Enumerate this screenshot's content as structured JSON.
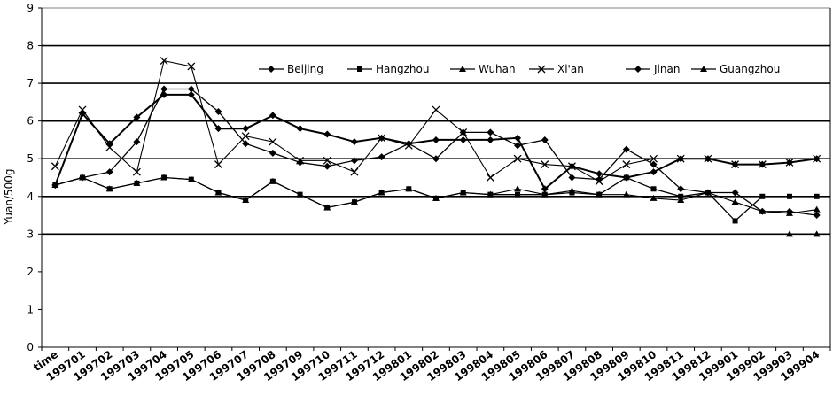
{
  "chart_data": {
    "type": "line",
    "title": "",
    "xlabel": "",
    "ylabel": "Yuan/500g",
    "ylim": [
      0,
      9
    ],
    "yticks": [
      0,
      1,
      2,
      3,
      4,
      5,
      6,
      7,
      8,
      9
    ],
    "grid": "horizontal at 3, 4, 5, 6, 7, 8",
    "legend_position": "top-right",
    "categories": [
      "time",
      "199701",
      "199702",
      "199703",
      "199704",
      "199705",
      "199706",
      "199707",
      "199708",
      "199709",
      "199710",
      "199711",
      "199712",
      "199801",
      "199802",
      "199803",
      "199804",
      "199805",
      "199806",
      "199807",
      "199808",
      "199809",
      "199810",
      "199811",
      "199812",
      "199901",
      "199902",
      "199903",
      "199904"
    ],
    "series": [
      {
        "name": "Beijing",
        "marker": "diamond",
        "color": "#000000",
        "values": [
          4.3,
          6.2,
          5.4,
          6.1,
          6.7,
          6.7,
          5.8,
          5.8,
          6.15,
          5.8,
          5.65,
          5.45,
          5.55,
          5.4,
          5.5,
          5.5,
          5.5,
          5.55,
          4.2,
          4.8,
          4.6,
          4.5,
          4.65,
          5.0,
          5.0,
          4.85,
          4.85,
          4.9,
          5.0
        ]
      },
      {
        "name": "Hangzhou",
        "marker": "square",
        "color": "#000000",
        "values": [
          4.3,
          4.5,
          4.2,
          4.35,
          4.5,
          4.45,
          4.1,
          3.9,
          4.4,
          4.05,
          3.7,
          3.85,
          4.1,
          4.2,
          3.95,
          4.1,
          4.05,
          4.05,
          4.05,
          4.1,
          4.05,
          4.5,
          4.2,
          4.0,
          4.1,
          3.35,
          4.0,
          4.0,
          4.0
        ]
      },
      {
        "name": "Wuhan",
        "marker": "triangle",
        "color": "#000000",
        "values": [
          4.3,
          4.5,
          4.2,
          4.35,
          4.5,
          4.45,
          4.1,
          3.9,
          4.4,
          4.05,
          3.7,
          3.85,
          4.1,
          4.2,
          3.95,
          4.1,
          4.05,
          4.2,
          4.05,
          4.15,
          4.05,
          4.05,
          3.95,
          3.9,
          4.1,
          3.85,
          3.6,
          3.55,
          3.65
        ]
      },
      {
        "name": "Xi'an",
        "marker": "x",
        "color": "#000000",
        "values": [
          4.8,
          6.3,
          5.3,
          4.65,
          7.6,
          7.45,
          4.85,
          5.6,
          5.45,
          4.95,
          4.95,
          4.65,
          5.55,
          5.35,
          6.3,
          5.7,
          4.5,
          5.0,
          4.85,
          4.8,
          4.4,
          4.85,
          5.0,
          5.0,
          5.0,
          4.85,
          4.85,
          4.9,
          5.0
        ]
      },
      {
        "name": "Jinan",
        "marker": "diamond",
        "color": "#000000",
        "values": [
          4.3,
          4.5,
          4.65,
          5.45,
          6.85,
          6.85,
          6.25,
          5.4,
          5.15,
          4.9,
          4.8,
          4.95,
          5.05,
          5.4,
          5.0,
          5.7,
          5.7,
          5.35,
          5.5,
          4.5,
          4.45,
          5.25,
          4.85,
          4.2,
          4.1,
          4.1,
          3.6,
          3.6,
          3.5
        ]
      },
      {
        "name": "Guangzhou",
        "marker": "triangle",
        "color": "#000000",
        "values": [
          null,
          null,
          null,
          null,
          null,
          null,
          null,
          null,
          null,
          null,
          null,
          null,
          null,
          null,
          null,
          null,
          null,
          null,
          null,
          null,
          null,
          null,
          null,
          null,
          null,
          null,
          null,
          3.0,
          3.0
        ]
      }
    ]
  }
}
